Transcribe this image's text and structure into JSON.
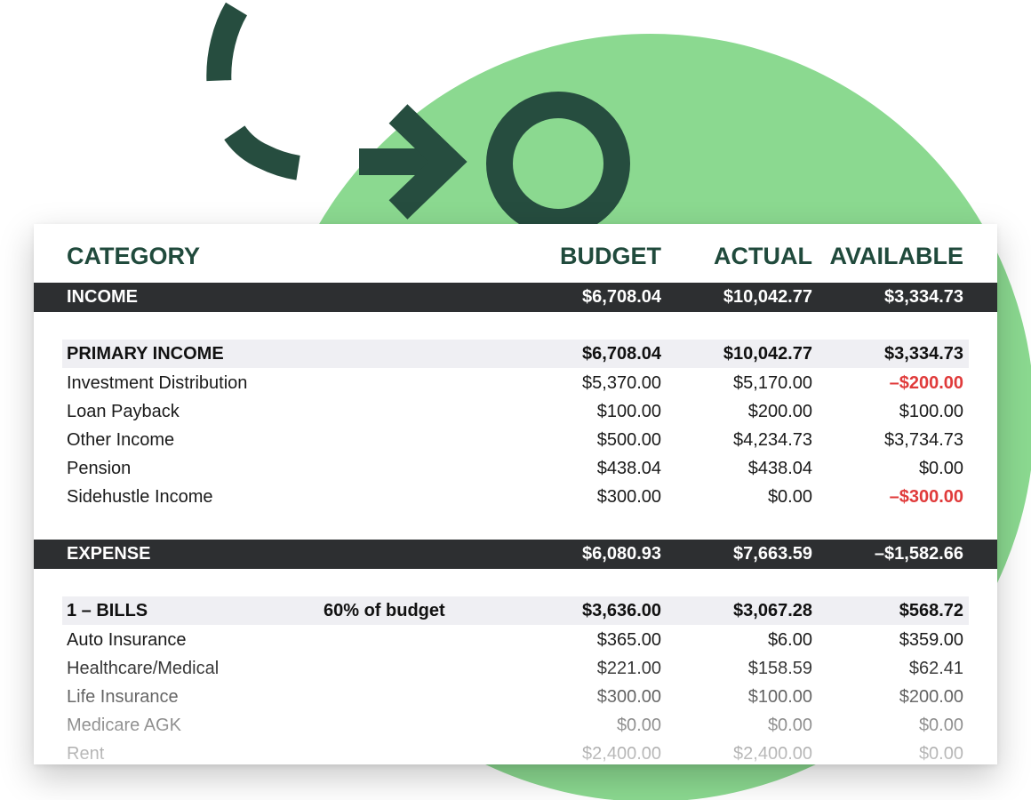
{
  "colors": {
    "accent_green": "#8bd990",
    "dark_green": "#264d3f",
    "band": "#2d2f31",
    "negative": "#e03b3b"
  },
  "decoration": {
    "icons": [
      "dashed-arc",
      "arrow-right-icon",
      "circle-icon"
    ]
  },
  "header": {
    "category": "CATEGORY",
    "budget": "BUDGET",
    "actual": "ACTUAL",
    "available": "AVAILABLE"
  },
  "income": {
    "label": "INCOME",
    "budget": "$6,708.04",
    "actual": "$10,042.77",
    "available": "$3,334.73",
    "group": {
      "label": "PRIMARY INCOME",
      "budget": "$6,708.04",
      "actual": "$10,042.77",
      "available": "$3,334.73"
    },
    "items": [
      {
        "name": "Investment Distribution",
        "budget": "$5,370.00",
        "actual": "$5,170.00",
        "available": "–$200.00"
      },
      {
        "name": "Loan Payback",
        "budget": "$100.00",
        "actual": "$200.00",
        "available": "$100.00"
      },
      {
        "name": "Other Income",
        "budget": "$500.00",
        "actual": "$4,234.73",
        "available": "$3,734.73"
      },
      {
        "name": "Pension",
        "budget": "$438.04",
        "actual": "$438.04",
        "available": "$0.00"
      },
      {
        "name": "Sidehustle Income",
        "budget": "$300.00",
        "actual": "$0.00",
        "available": "–$300.00"
      }
    ]
  },
  "expense": {
    "label": "EXPENSE",
    "budget": "$6,080.93",
    "actual": "$7,663.59",
    "available": "–$1,582.66",
    "group": {
      "label": "1 – BILLS",
      "note": "60%  of budget",
      "budget": "$3,636.00",
      "actual": "$3,067.28",
      "available": "$568.72"
    },
    "items": [
      {
        "name": "Auto Insurance",
        "budget": "$365.00",
        "actual": "$6.00",
        "available": "$359.00"
      },
      {
        "name": "Healthcare/Medical",
        "budget": "$221.00",
        "actual": "$158.59",
        "available": "$62.41"
      },
      {
        "name": "Life Insurance",
        "budget": "$300.00",
        "actual": "$100.00",
        "available": "$200.00"
      },
      {
        "name": "Medicare AGK",
        "budget": "$0.00",
        "actual": "$0.00",
        "available": "$0.00"
      },
      {
        "name": "Rent",
        "budget": "$2,400.00",
        "actual": "$2,400.00",
        "available": "$0.00"
      }
    ]
  }
}
